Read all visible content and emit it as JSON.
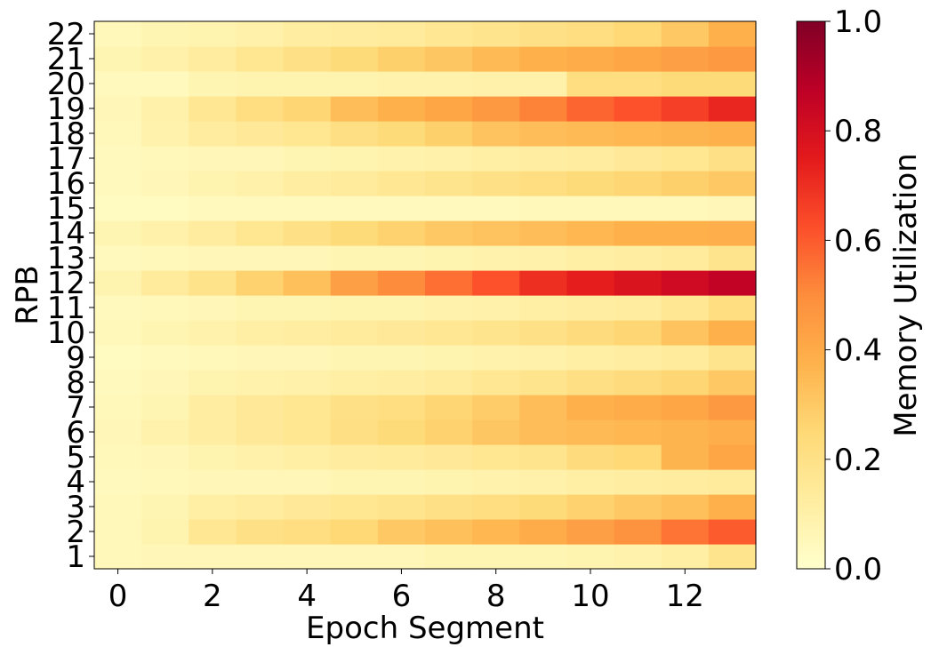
{
  "chart_data": {
    "type": "heatmap",
    "xlabel": "Epoch Segment",
    "ylabel": "RPB",
    "colorbar_label": "Memory Utilization",
    "colormap": "YlOrRd",
    "vmin": 0.0,
    "vmax": 1.0,
    "x_values": [
      0,
      1,
      2,
      3,
      4,
      5,
      6,
      7,
      8,
      9,
      10,
      11,
      12,
      13
    ],
    "x_ticks": [
      "0",
      "2",
      "4",
      "6",
      "8",
      "10",
      "12"
    ],
    "y_categories": [
      "1",
      "2",
      "3",
      "4",
      "5",
      "6",
      "7",
      "8",
      "9",
      "10",
      "11",
      "12",
      "13",
      "14",
      "15",
      "16",
      "17",
      "18",
      "19",
      "20",
      "21",
      "22"
    ],
    "colorbar_ticks": [
      "0.0",
      "0.2",
      "0.4",
      "0.6",
      "0.8",
      "1.0"
    ],
    "grid": false,
    "rows": [
      {
        "rpb": "1",
        "values": [
          0.05,
          0.06,
          0.06,
          0.06,
          0.06,
          0.06,
          0.06,
          0.07,
          0.07,
          0.07,
          0.08,
          0.09,
          0.11,
          0.18
        ]
      },
      {
        "rpb": "2",
        "values": [
          0.05,
          0.08,
          0.16,
          0.2,
          0.22,
          0.25,
          0.3,
          0.33,
          0.36,
          0.4,
          0.44,
          0.48,
          0.55,
          0.6
        ]
      },
      {
        "rpb": "3",
        "values": [
          0.05,
          0.07,
          0.11,
          0.13,
          0.15,
          0.17,
          0.18,
          0.2,
          0.22,
          0.24,
          0.27,
          0.3,
          0.33,
          0.38
        ]
      },
      {
        "rpb": "4",
        "values": [
          0.04,
          0.05,
          0.06,
          0.06,
          0.06,
          0.07,
          0.07,
          0.08,
          0.09,
          0.1,
          0.11,
          0.12,
          0.13,
          0.14
        ]
      },
      {
        "rpb": "5",
        "values": [
          0.05,
          0.06,
          0.08,
          0.1,
          0.11,
          0.13,
          0.14,
          0.15,
          0.17,
          0.18,
          0.23,
          0.25,
          0.37,
          0.42
        ]
      },
      {
        "rpb": "6",
        "values": [
          0.06,
          0.09,
          0.12,
          0.15,
          0.17,
          0.21,
          0.24,
          0.27,
          0.31,
          0.34,
          0.35,
          0.36,
          0.37,
          0.39
        ]
      },
      {
        "rpb": "7",
        "values": [
          0.05,
          0.07,
          0.12,
          0.15,
          0.17,
          0.2,
          0.22,
          0.26,
          0.29,
          0.34,
          0.38,
          0.4,
          0.42,
          0.46
        ]
      },
      {
        "rpb": "8",
        "values": [
          0.04,
          0.06,
          0.08,
          0.09,
          0.1,
          0.11,
          0.12,
          0.14,
          0.16,
          0.18,
          0.21,
          0.23,
          0.26,
          0.3
        ]
      },
      {
        "rpb": "9",
        "values": [
          0.03,
          0.04,
          0.05,
          0.06,
          0.06,
          0.07,
          0.07,
          0.08,
          0.09,
          0.1,
          0.11,
          0.12,
          0.14,
          0.18
        ]
      },
      {
        "rpb": "10",
        "values": [
          0.05,
          0.07,
          0.09,
          0.11,
          0.12,
          0.14,
          0.15,
          0.16,
          0.18,
          0.2,
          0.23,
          0.26,
          0.32,
          0.38
        ]
      },
      {
        "rpb": "11",
        "values": [
          0.04,
          0.05,
          0.06,
          0.07,
          0.07,
          0.08,
          0.08,
          0.09,
          0.1,
          0.11,
          0.12,
          0.13,
          0.16,
          0.22
        ]
      },
      {
        "rpb": "12",
        "values": [
          0.08,
          0.14,
          0.19,
          0.27,
          0.33,
          0.44,
          0.5,
          0.56,
          0.62,
          0.7,
          0.74,
          0.78,
          0.82,
          0.86
        ]
      },
      {
        "rpb": "13",
        "values": [
          0.04,
          0.05,
          0.06,
          0.06,
          0.06,
          0.07,
          0.07,
          0.08,
          0.09,
          0.1,
          0.11,
          0.12,
          0.14,
          0.18
        ]
      },
      {
        "rpb": "14",
        "values": [
          0.07,
          0.1,
          0.13,
          0.17,
          0.2,
          0.24,
          0.27,
          0.3,
          0.32,
          0.34,
          0.36,
          0.38,
          0.38,
          0.39
        ]
      },
      {
        "rpb": "15",
        "values": [
          0.03,
          0.03,
          0.04,
          0.04,
          0.04,
          0.04,
          0.04,
          0.04,
          0.04,
          0.05,
          0.05,
          0.05,
          0.05,
          0.06
        ]
      },
      {
        "rpb": "16",
        "values": [
          0.04,
          0.06,
          0.08,
          0.1,
          0.12,
          0.14,
          0.16,
          0.18,
          0.2,
          0.22,
          0.24,
          0.26,
          0.28,
          0.3
        ]
      },
      {
        "rpb": "17",
        "values": [
          0.04,
          0.05,
          0.06,
          0.06,
          0.07,
          0.08,
          0.09,
          0.1,
          0.11,
          0.12,
          0.13,
          0.15,
          0.17,
          0.2
        ]
      },
      {
        "rpb": "18",
        "values": [
          0.05,
          0.09,
          0.13,
          0.15,
          0.17,
          0.21,
          0.24,
          0.28,
          0.32,
          0.34,
          0.35,
          0.36,
          0.37,
          0.38
        ]
      },
      {
        "rpb": "19",
        "values": [
          0.06,
          0.1,
          0.16,
          0.22,
          0.26,
          0.34,
          0.38,
          0.42,
          0.46,
          0.52,
          0.58,
          0.62,
          0.66,
          0.72
        ]
      },
      {
        "rpb": "20",
        "values": [
          0.04,
          0.04,
          0.07,
          0.08,
          0.08,
          0.08,
          0.09,
          0.09,
          0.1,
          0.1,
          0.22,
          0.22,
          0.24,
          0.24
        ]
      },
      {
        "rpb": "21",
        "values": [
          0.07,
          0.1,
          0.13,
          0.17,
          0.2,
          0.24,
          0.28,
          0.31,
          0.35,
          0.38,
          0.4,
          0.42,
          0.44,
          0.46
        ]
      },
      {
        "rpb": "22",
        "values": [
          0.05,
          0.07,
          0.08,
          0.1,
          0.12,
          0.13,
          0.14,
          0.16,
          0.18,
          0.2,
          0.22,
          0.25,
          0.3,
          0.38
        ]
      }
    ]
  }
}
